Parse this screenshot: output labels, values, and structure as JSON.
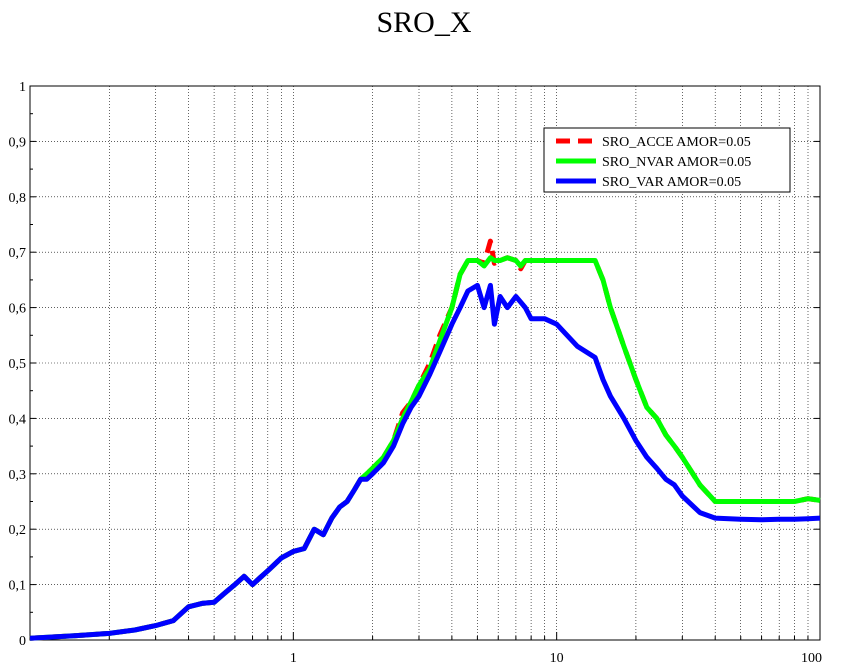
{
  "chart_data": {
    "type": "line",
    "title": "SRO_X",
    "xlabel": "",
    "ylabel": "",
    "xscale": "log",
    "xlim": [
      0.1,
      100
    ],
    "ylim": [
      0,
      1
    ],
    "grid": true,
    "legend_position": "top-right",
    "x_tick_labels": [
      "1",
      "10",
      "100"
    ],
    "y_tick_labels": [
      "0",
      "0,1",
      "0,2",
      "0,3",
      "0,4",
      "0,5",
      "0,6",
      "0,7",
      "0,8",
      "0,9",
      "1"
    ],
    "series": [
      {
        "name": "SRO_ACCE AMOR=0.05",
        "color": "#ff0000",
        "dash": true,
        "x": [
          0.1,
          0.15,
          0.2,
          0.25,
          0.3,
          0.35,
          0.4,
          0.45,
          0.5,
          0.55,
          0.6,
          0.65,
          0.7,
          0.75,
          0.8,
          0.9,
          1.0,
          1.1,
          1.2,
          1.3,
          1.4,
          1.5,
          1.6,
          1.7,
          1.8,
          1.9,
          2.0,
          2.2,
          2.4,
          2.6,
          2.8,
          3.0,
          3.3,
          3.6,
          4.0,
          4.3,
          4.6,
          5.0,
          5.3,
          5.6,
          5.8,
          6.1,
          6.5,
          7.0,
          7.3,
          7.6,
          8.0,
          9.0,
          10.0,
          12.0,
          14.0,
          15.0,
          16.0,
          18.0,
          20.0,
          22.0,
          24.0,
          26.0,
          28.0,
          30.0,
          35.0,
          40.0,
          50.0,
          60.0,
          70.0,
          80.0,
          90.0,
          100.0
        ],
        "y": [
          0.003,
          0.008,
          0.012,
          0.018,
          0.026,
          0.035,
          0.06,
          0.066,
          0.068,
          0.085,
          0.1,
          0.115,
          0.1,
          0.113,
          0.125,
          0.148,
          0.16,
          0.165,
          0.2,
          0.19,
          0.22,
          0.24,
          0.25,
          0.27,
          0.29,
          0.3,
          0.31,
          0.33,
          0.36,
          0.41,
          0.43,
          0.46,
          0.5,
          0.55,
          0.6,
          0.66,
          0.685,
          0.685,
          0.68,
          0.72,
          0.68,
          0.685,
          0.69,
          0.685,
          0.67,
          0.685,
          0.685,
          0.685,
          0.685,
          0.685,
          0.685,
          0.65,
          0.6,
          0.53,
          0.47,
          0.42,
          0.4,
          0.37,
          0.35,
          0.33,
          0.28,
          0.25,
          0.25,
          0.25,
          0.25,
          0.25,
          0.255,
          0.252
        ]
      },
      {
        "name": "SRO_NVAR AMOR=0.05",
        "color": "#00ff00",
        "dash": false,
        "x": [
          0.1,
          0.15,
          0.2,
          0.25,
          0.3,
          0.35,
          0.4,
          0.45,
          0.5,
          0.55,
          0.6,
          0.65,
          0.7,
          0.75,
          0.8,
          0.9,
          1.0,
          1.1,
          1.2,
          1.3,
          1.4,
          1.5,
          1.6,
          1.7,
          1.8,
          1.9,
          2.0,
          2.2,
          2.4,
          2.6,
          2.8,
          3.0,
          3.3,
          3.6,
          4.0,
          4.3,
          4.6,
          5.0,
          5.3,
          5.6,
          5.8,
          6.1,
          6.5,
          7.0,
          7.3,
          7.6,
          8.0,
          9.0,
          10.0,
          12.0,
          14.0,
          15.0,
          16.0,
          18.0,
          20.0,
          22.0,
          24.0,
          26.0,
          28.0,
          30.0,
          35.0,
          40.0,
          50.0,
          60.0,
          70.0,
          80.0,
          90.0,
          100.0
        ],
        "y": [
          0.003,
          0.008,
          0.012,
          0.018,
          0.026,
          0.035,
          0.06,
          0.066,
          0.068,
          0.085,
          0.1,
          0.115,
          0.1,
          0.113,
          0.125,
          0.148,
          0.16,
          0.165,
          0.2,
          0.19,
          0.22,
          0.24,
          0.25,
          0.27,
          0.29,
          0.3,
          0.31,
          0.33,
          0.36,
          0.4,
          0.43,
          0.46,
          0.49,
          0.54,
          0.6,
          0.66,
          0.685,
          0.685,
          0.675,
          0.69,
          0.685,
          0.685,
          0.69,
          0.685,
          0.675,
          0.685,
          0.685,
          0.685,
          0.685,
          0.685,
          0.685,
          0.65,
          0.6,
          0.53,
          0.47,
          0.42,
          0.4,
          0.37,
          0.35,
          0.33,
          0.28,
          0.25,
          0.25,
          0.25,
          0.25,
          0.25,
          0.255,
          0.252
        ]
      },
      {
        "name": "SRO_VAR AMOR=0.05",
        "color": "#0000ff",
        "dash": false,
        "x": [
          0.1,
          0.15,
          0.2,
          0.25,
          0.3,
          0.35,
          0.4,
          0.45,
          0.5,
          0.55,
          0.6,
          0.65,
          0.7,
          0.75,
          0.8,
          0.9,
          1.0,
          1.1,
          1.2,
          1.3,
          1.4,
          1.5,
          1.6,
          1.7,
          1.8,
          1.9,
          2.0,
          2.2,
          2.4,
          2.6,
          2.8,
          3.0,
          3.3,
          3.6,
          4.0,
          4.3,
          4.6,
          5.0,
          5.3,
          5.6,
          5.8,
          6.1,
          6.5,
          7.0,
          7.3,
          7.6,
          8.0,
          9.0,
          10.0,
          12.0,
          14.0,
          15.0,
          16.0,
          18.0,
          20.0,
          22.0,
          24.0,
          26.0,
          28.0,
          30.0,
          35.0,
          40.0,
          50.0,
          60.0,
          70.0,
          80.0,
          90.0,
          100.0
        ],
        "y": [
          0.003,
          0.008,
          0.012,
          0.018,
          0.026,
          0.035,
          0.06,
          0.066,
          0.068,
          0.085,
          0.1,
          0.115,
          0.1,
          0.113,
          0.125,
          0.148,
          0.16,
          0.165,
          0.2,
          0.19,
          0.22,
          0.24,
          0.25,
          0.27,
          0.29,
          0.29,
          0.3,
          0.32,
          0.35,
          0.39,
          0.42,
          0.44,
          0.48,
          0.52,
          0.57,
          0.6,
          0.63,
          0.64,
          0.6,
          0.64,
          0.57,
          0.62,
          0.6,
          0.62,
          0.61,
          0.6,
          0.58,
          0.58,
          0.57,
          0.53,
          0.51,
          0.47,
          0.44,
          0.4,
          0.36,
          0.33,
          0.31,
          0.29,
          0.28,
          0.26,
          0.23,
          0.22,
          0.218,
          0.217,
          0.218,
          0.218,
          0.219,
          0.22
        ]
      }
    ]
  }
}
